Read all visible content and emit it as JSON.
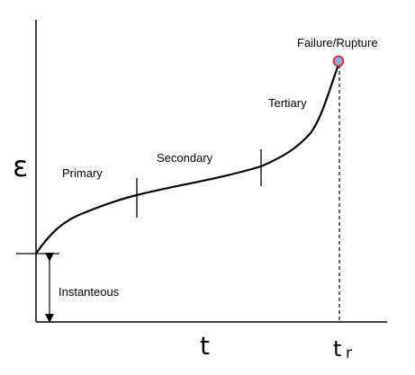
{
  "axes": {
    "y_symbol": "ε",
    "x_symbol": "t",
    "rupture_time_symbol": "t",
    "rupture_time_subscript": "r"
  },
  "stages": {
    "primary": "Primary",
    "secondary": "Secondary",
    "tertiary": "Tertiary"
  },
  "annotations": {
    "failure": "Failure/Rupture",
    "instantaneous": "Instanteous"
  },
  "colors": {
    "curve": "#000000",
    "failure_point_fill": "#8faadc",
    "failure_point_stroke": "#ff0000"
  }
}
